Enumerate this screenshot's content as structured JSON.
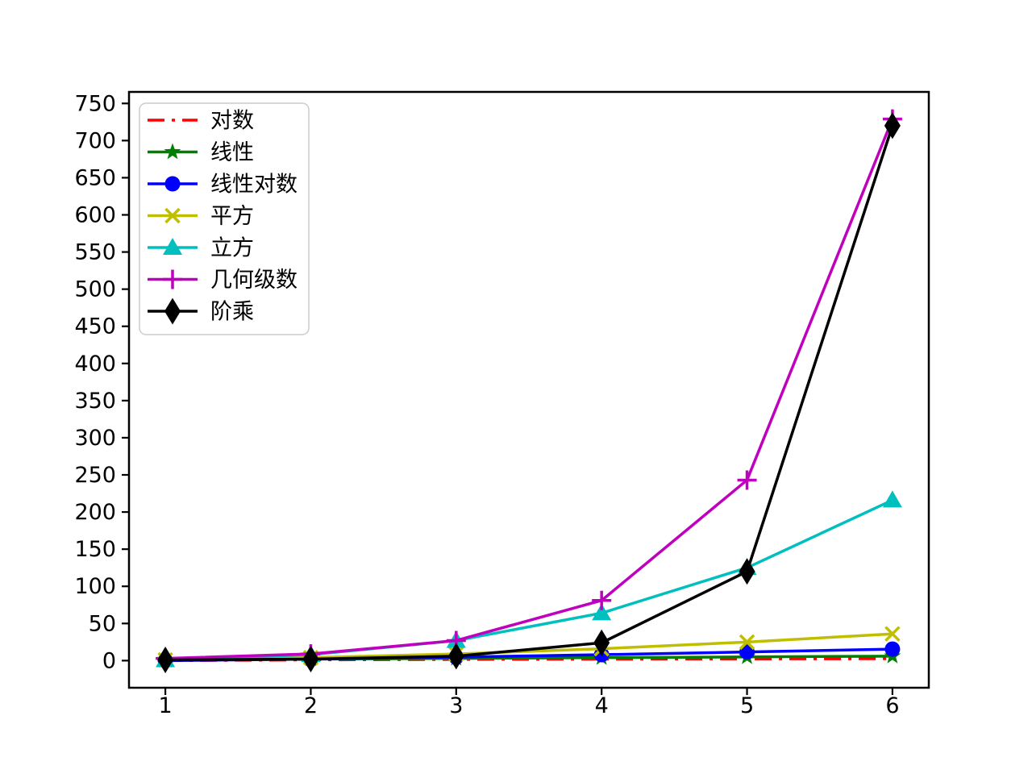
{
  "figure": {
    "background": "#ffffff",
    "border_color": "#000000",
    "legend_border_color": "#cccccc"
  },
  "chart_data": {
    "type": "line",
    "title": "",
    "xlabel": "",
    "ylabel": "",
    "grid": false,
    "legend_position": "upper left",
    "x": [
      1,
      2,
      3,
      4,
      5,
      6
    ],
    "xticks": [
      "1",
      "2",
      "3",
      "4",
      "5",
      "6"
    ],
    "yticks": [
      "0",
      "50",
      "100",
      "150",
      "200",
      "250",
      "300",
      "350",
      "400",
      "450",
      "500",
      "550",
      "600",
      "650",
      "700",
      "750"
    ],
    "ytick_values": [
      0,
      50,
      100,
      150,
      200,
      250,
      300,
      350,
      400,
      450,
      500,
      550,
      600,
      650,
      700,
      750
    ],
    "xlim": [
      0.75,
      6.25
    ],
    "ylim": [
      -36.5,
      765.5
    ],
    "series": [
      {
        "key": "log",
        "name": "对数",
        "color": "#ff0000",
        "linestyle": "dashdot",
        "marker": "none",
        "values": [
          0,
          1,
          1.58,
          2,
          2.32,
          2.58
        ]
      },
      {
        "key": "linear",
        "name": "线性",
        "color": "#008000",
        "linestyle": "solid",
        "marker": "star",
        "values": [
          1,
          2,
          3,
          4,
          5,
          6
        ]
      },
      {
        "key": "linearithmic",
        "name": "线性对数",
        "color": "#0000ff",
        "linestyle": "solid",
        "marker": "circle",
        "values": [
          0,
          2,
          4.75,
          8,
          11.61,
          15.51
        ]
      },
      {
        "key": "quadratic",
        "name": "平方",
        "color": "#bfbf00",
        "linestyle": "solid",
        "marker": "x",
        "values": [
          1,
          4,
          9,
          16,
          25,
          36
        ]
      },
      {
        "key": "cubic",
        "name": "立方",
        "color": "#00bfbf",
        "linestyle": "solid",
        "marker": "triangle",
        "values": [
          1,
          8,
          27,
          64,
          125,
          216
        ]
      },
      {
        "key": "geometric",
        "name": "几何级数",
        "color": "#bf00bf",
        "linestyle": "solid",
        "marker": "plus",
        "values": [
          3,
          9,
          27,
          81,
          243,
          729
        ]
      },
      {
        "key": "factorial",
        "name": "阶乘",
        "color": "#000000",
        "linestyle": "solid",
        "marker": "diamond",
        "values": [
          1,
          2,
          6,
          24,
          120,
          720
        ]
      }
    ]
  }
}
